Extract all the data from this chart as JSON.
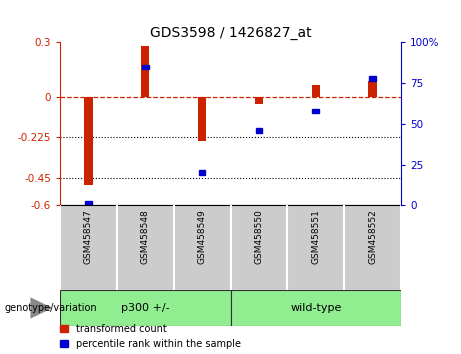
{
  "title": "GDS3598 / 1426827_at",
  "samples": [
    "GSM458547",
    "GSM458548",
    "GSM458549",
    "GSM458550",
    "GSM458551",
    "GSM458552"
  ],
  "red_values": [
    -0.49,
    0.28,
    -0.245,
    -0.04,
    0.065,
    0.085
  ],
  "blue_values": [
    1.0,
    85.0,
    20.0,
    46.0,
    58.0,
    78.0
  ],
  "ylim_left": [
    -0.6,
    0.3
  ],
  "ylim_right": [
    0,
    100
  ],
  "yticks_left": [
    0.3,
    0,
    -0.225,
    -0.45,
    -0.6
  ],
  "yticks_right": [
    100,
    75,
    50,
    25,
    0
  ],
  "ytick_labels_left": [
    "0.3",
    "0",
    "-0.225",
    "-0.45",
    "-0.6"
  ],
  "ytick_labels_right": [
    "100%",
    "75",
    "50",
    "25",
    "0"
  ],
  "hline_y": 0,
  "dotted_lines": [
    -0.225,
    -0.45
  ],
  "groups": [
    {
      "label": "p300 +/-",
      "start": 0,
      "end": 3,
      "color": "#90EE90"
    },
    {
      "label": "wild-type",
      "start": 3,
      "end": 6,
      "color": "#90EE90"
    }
  ],
  "group_label": "genotype/variation",
  "legend_red": "transformed count",
  "legend_blue": "percentile rank within the sample",
  "bar_color": "#cc2200",
  "dot_color": "#0000cc",
  "left_axis_color": "#cc2200",
  "right_axis_color": "#0000cc",
  "bar_width": 0.15,
  "label_bg_color": "#cccccc",
  "group_border_color": "#333333"
}
